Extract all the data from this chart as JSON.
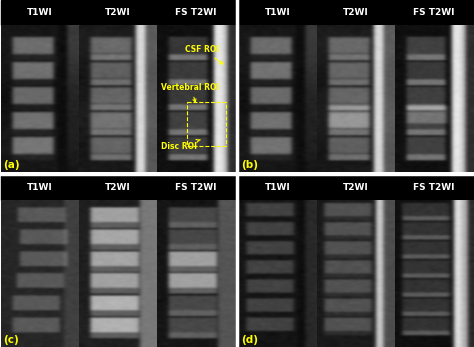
{
  "background_color": "#000000",
  "fig_background": "#ffffff",
  "panel_labels": [
    "(a)",
    "(b)",
    "(c)",
    "(d)"
  ],
  "col_headers": [
    "T1WI",
    "T2WI",
    "FS T2WI"
  ],
  "annotations": {
    "csf_roi": "CSF ROI",
    "vertebral_roi": "Vertebral ROI",
    "disc_roi": "Disc ROI"
  },
  "label_color": "#ffff00",
  "panel_label_color": "#ffff00",
  "header_color": "#ffffff",
  "header_bg": "#000000",
  "header_fontsize": 6.5,
  "panel_label_fontsize": 7.5,
  "annotation_fontsize": 5.5,
  "fig_width": 4.74,
  "fig_height": 3.47,
  "dpi": 100
}
